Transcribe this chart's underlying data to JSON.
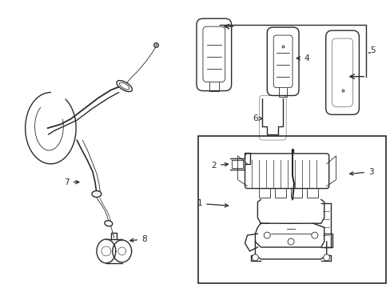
{
  "background_color": "#ffffff",
  "line_color": "#2a2a2a",
  "label_color": "#1a1a1a",
  "fig_width": 4.89,
  "fig_height": 3.6,
  "dpi": 100,
  "label_fontsize": 7.5
}
